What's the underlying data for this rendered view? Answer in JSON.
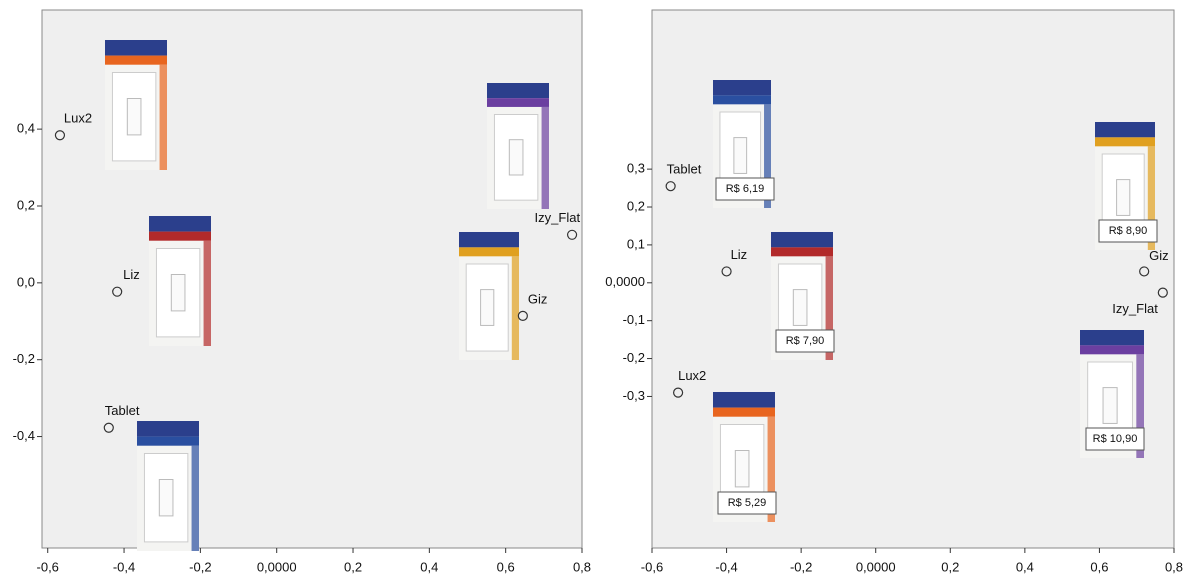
{
  "chart_data": [
    {
      "type": "scatter",
      "point_labels": [
        "Lux2",
        "Liz",
        "Tablet",
        "Izy_Flat",
        "Giz"
      ],
      "x": [
        -0.568,
        -0.418,
        -0.44,
        0.774,
        0.645
      ],
      "y": [
        0.384,
        -0.023,
        -0.377,
        0.125,
        -0.086
      ],
      "xlim": [
        -0.615,
        0.8
      ],
      "ylim": [
        -0.69,
        0.71
      ],
      "xticks": [
        {
          "value": -0.6,
          "label": "-0,6"
        },
        {
          "value": -0.4,
          "label": "-0,4"
        },
        {
          "value": -0.2,
          "label": "-0,2"
        },
        {
          "value": 0,
          "label": "0,0000"
        },
        {
          "value": 0.2,
          "label": "0,2"
        },
        {
          "value": 0.4,
          "label": "0,4"
        },
        {
          "value": 0.6,
          "label": "0,6"
        },
        {
          "value": 0.8,
          "label": "0,8"
        }
      ],
      "yticks": [
        {
          "value": 0.4,
          "label": "0,4"
        },
        {
          "value": 0.2,
          "label": "0,2"
        },
        {
          "value": 0,
          "label": "0,0"
        },
        {
          "value": -0.2,
          "label": "-0,2"
        },
        {
          "value": -0.4,
          "label": "-0,4"
        }
      ]
    },
    {
      "type": "scatter",
      "point_labels": [
        "Tablet",
        "Liz",
        "Lux2",
        "Giz",
        "Izy_Flat"
      ],
      "price_labels": [
        "R$ 6,19",
        "R$ 7,90",
        "R$ 5,29",
        "R$ 8,90",
        "R$ 10,90"
      ],
      "x": [
        -0.55,
        -0.4,
        -0.53,
        0.72,
        0.77
      ],
      "y": [
        0.255,
        0.03,
        -0.29,
        0.03,
        -0.026
      ],
      "xlim": [
        -0.6,
        0.8
      ],
      "ylim": [
        -0.7,
        0.72
      ],
      "xticks": [
        {
          "value": -0.6,
          "label": "-0,6"
        },
        {
          "value": -0.4,
          "label": "-0,4"
        },
        {
          "value": -0.2,
          "label": "-0,2"
        },
        {
          "value": 0,
          "label": "0,0000"
        },
        {
          "value": 0.2,
          "label": "0,2"
        },
        {
          "value": 0.4,
          "label": "0,4"
        },
        {
          "value": 0.6,
          "label": "0,6"
        },
        {
          "value": 0.8,
          "label": "0,8"
        }
      ],
      "yticks": [
        {
          "value": 0.3,
          "label": "0,3"
        },
        {
          "value": 0.2,
          "label": "0,2"
        },
        {
          "value": 0.1,
          "label": "0,1"
        },
        {
          "value": 0,
          "label": "0,0000"
        },
        {
          "value": -0.1,
          "label": "-0,1"
        },
        {
          "value": -0.2,
          "label": "-0,2"
        },
        {
          "value": -0.3,
          "label": "-0,3"
        }
      ]
    }
  ]
}
